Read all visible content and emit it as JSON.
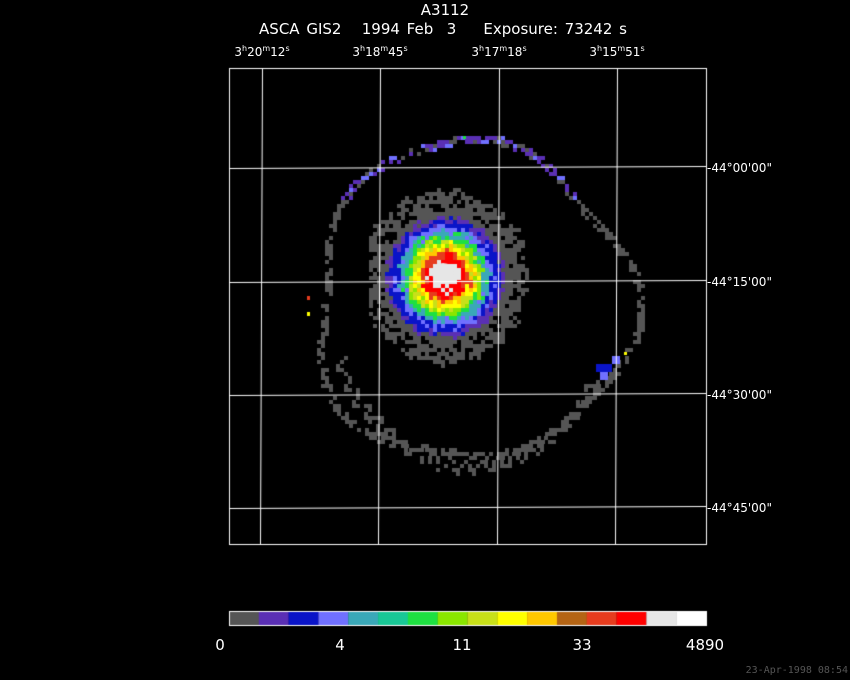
{
  "header": {
    "target": "A3112",
    "instrument_line": "ASCA GIS2   1994 Feb  3    Exposure: 73242 s"
  },
  "axes": {
    "ra_ticks": [
      {
        "h": "3",
        "m": "20",
        "s": "12"
      },
      {
        "h": "3",
        "m": "18",
        "s": "45"
      },
      {
        "h": "3",
        "m": "17",
        "s": "18"
      },
      {
        "h": "3",
        "m": "15",
        "s": "51"
      }
    ],
    "dec_ticks": [
      "-44°00'00\"",
      "-44°15'00\"",
      "-44°30'00\"",
      "-44°45'00\""
    ]
  },
  "colorbar": {
    "colors": [
      "#555555",
      "#5a2fb4",
      "#0a14c8",
      "#7070ff",
      "#3aa8b8",
      "#19c896",
      "#1ee041",
      "#8ae600",
      "#c8e019",
      "#ffff00",
      "#ffc800",
      "#b46414",
      "#e63c1e",
      "#ff0000",
      "#e6e6e6",
      "#ffffff"
    ],
    "labels": [
      "0",
      "4",
      "11",
      "33",
      "4890"
    ]
  },
  "footer": {
    "timestamp": "23-Apr-1998 08:54"
  }
}
